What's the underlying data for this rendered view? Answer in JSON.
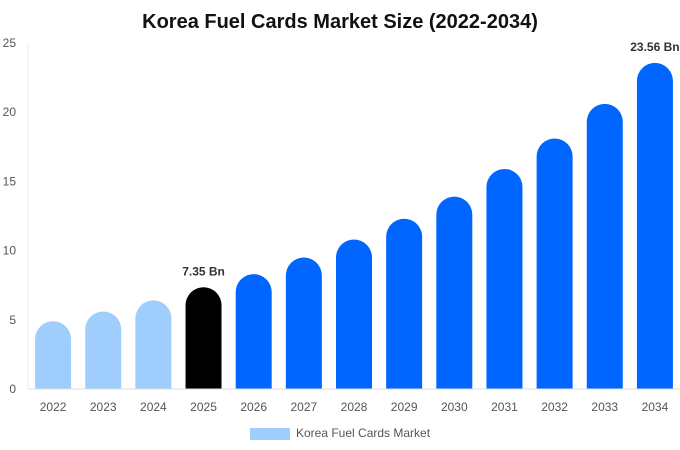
{
  "chart_data": {
    "type": "bar",
    "title": "Korea Fuel Cards Market Size (2022-2034)",
    "xlabel": "",
    "ylabel": "",
    "categories": [
      "2022",
      "2023",
      "2024",
      "2025",
      "2026",
      "2027",
      "2028",
      "2029",
      "2030",
      "2031",
      "2032",
      "2033",
      "2034"
    ],
    "series": [
      {
        "name": "Korea Fuel Cards Market",
        "values": [
          4.9,
          5.6,
          6.4,
          7.35,
          8.3,
          9.5,
          10.8,
          12.3,
          13.9,
          15.9,
          18.1,
          20.6,
          23.56
        ]
      }
    ],
    "data_labels": [
      {
        "category": "2025",
        "text": "7.35 Bn"
      },
      {
        "category": "2034",
        "text": "23.56 Bn"
      }
    ],
    "ylim": [
      0,
      25
    ],
    "yticks": [
      0,
      5,
      10,
      15,
      20,
      25
    ],
    "grid": false,
    "legend_position": "bottom",
    "colors": {
      "historical": "#9fcdfc",
      "current": "#000000",
      "forecast": "#0066ff"
    },
    "color_by_category": [
      "historical",
      "historical",
      "historical",
      "current",
      "forecast",
      "forecast",
      "forecast",
      "forecast",
      "forecast",
      "forecast",
      "forecast",
      "forecast",
      "forecast"
    ]
  }
}
